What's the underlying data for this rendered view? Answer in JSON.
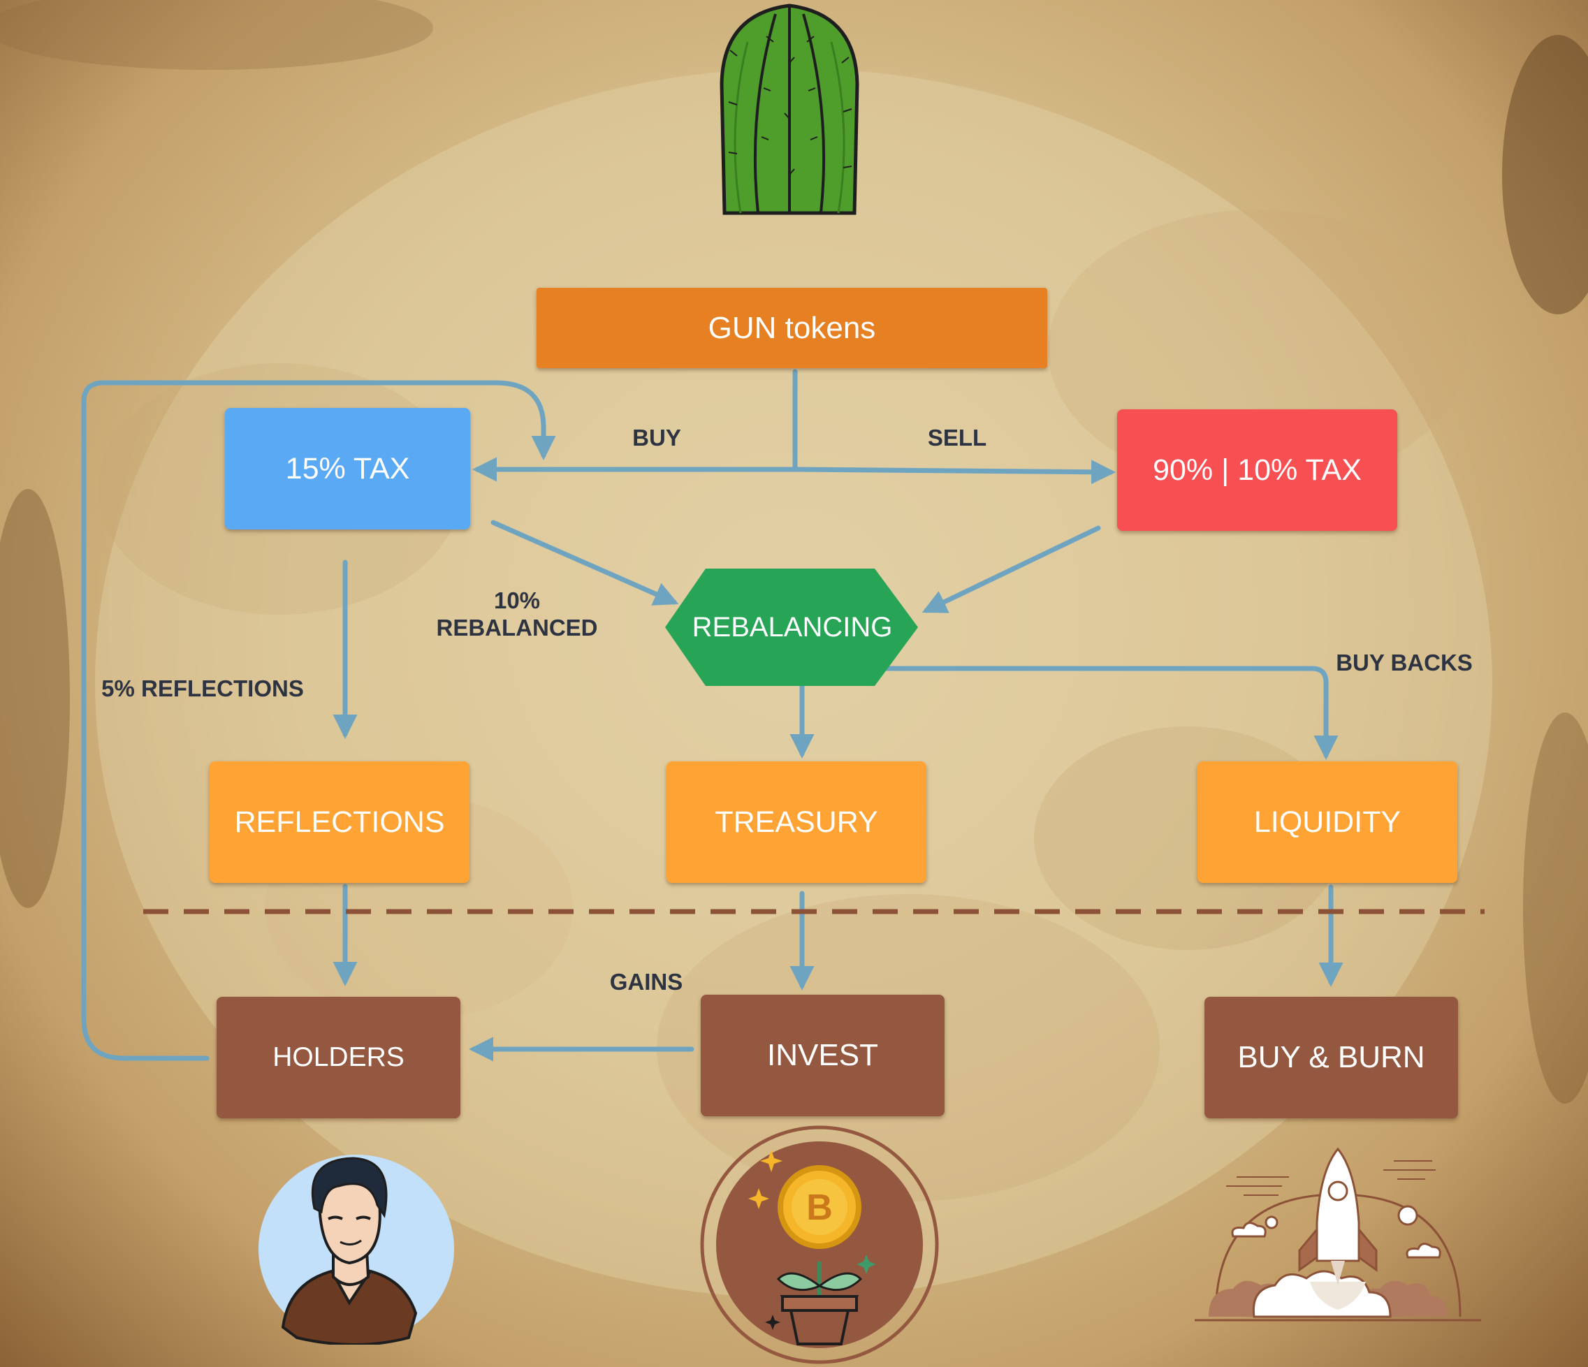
{
  "colors": {
    "orange_top": "#e68023",
    "blue": "#5aa9f4",
    "red": "#f85052",
    "green": "#27a456",
    "orange": "#fea334",
    "brown": "#93583f",
    "arrow": "#6fa4c0",
    "dash": "#8c5237"
  },
  "nodes": {
    "gun_tokens": "GUN tokens",
    "tax_buy": "15% TAX",
    "tax_sell": "90% | 10% TAX",
    "rebalancing": "REBALANCING",
    "reflections": "REFLECTIONS",
    "treasury": "TREASURY",
    "liquidity": "LIQUIDITY",
    "holders": "HOLDERS",
    "invest": "INVEST",
    "buy_burn": "BUY & BURN"
  },
  "edge_labels": {
    "buy": "BUY",
    "sell": "SELL",
    "rebalanced_line1": "10%",
    "rebalanced_line2": "REBALANCED",
    "reflections_5": "5% REFLECTIONS",
    "buy_backs": "BUY BACKS",
    "gains": "GAINS"
  },
  "icons": [
    "cactus-icon",
    "person-avatar-icon",
    "bitcoin-plant-icon",
    "rocket-launch-icon"
  ]
}
